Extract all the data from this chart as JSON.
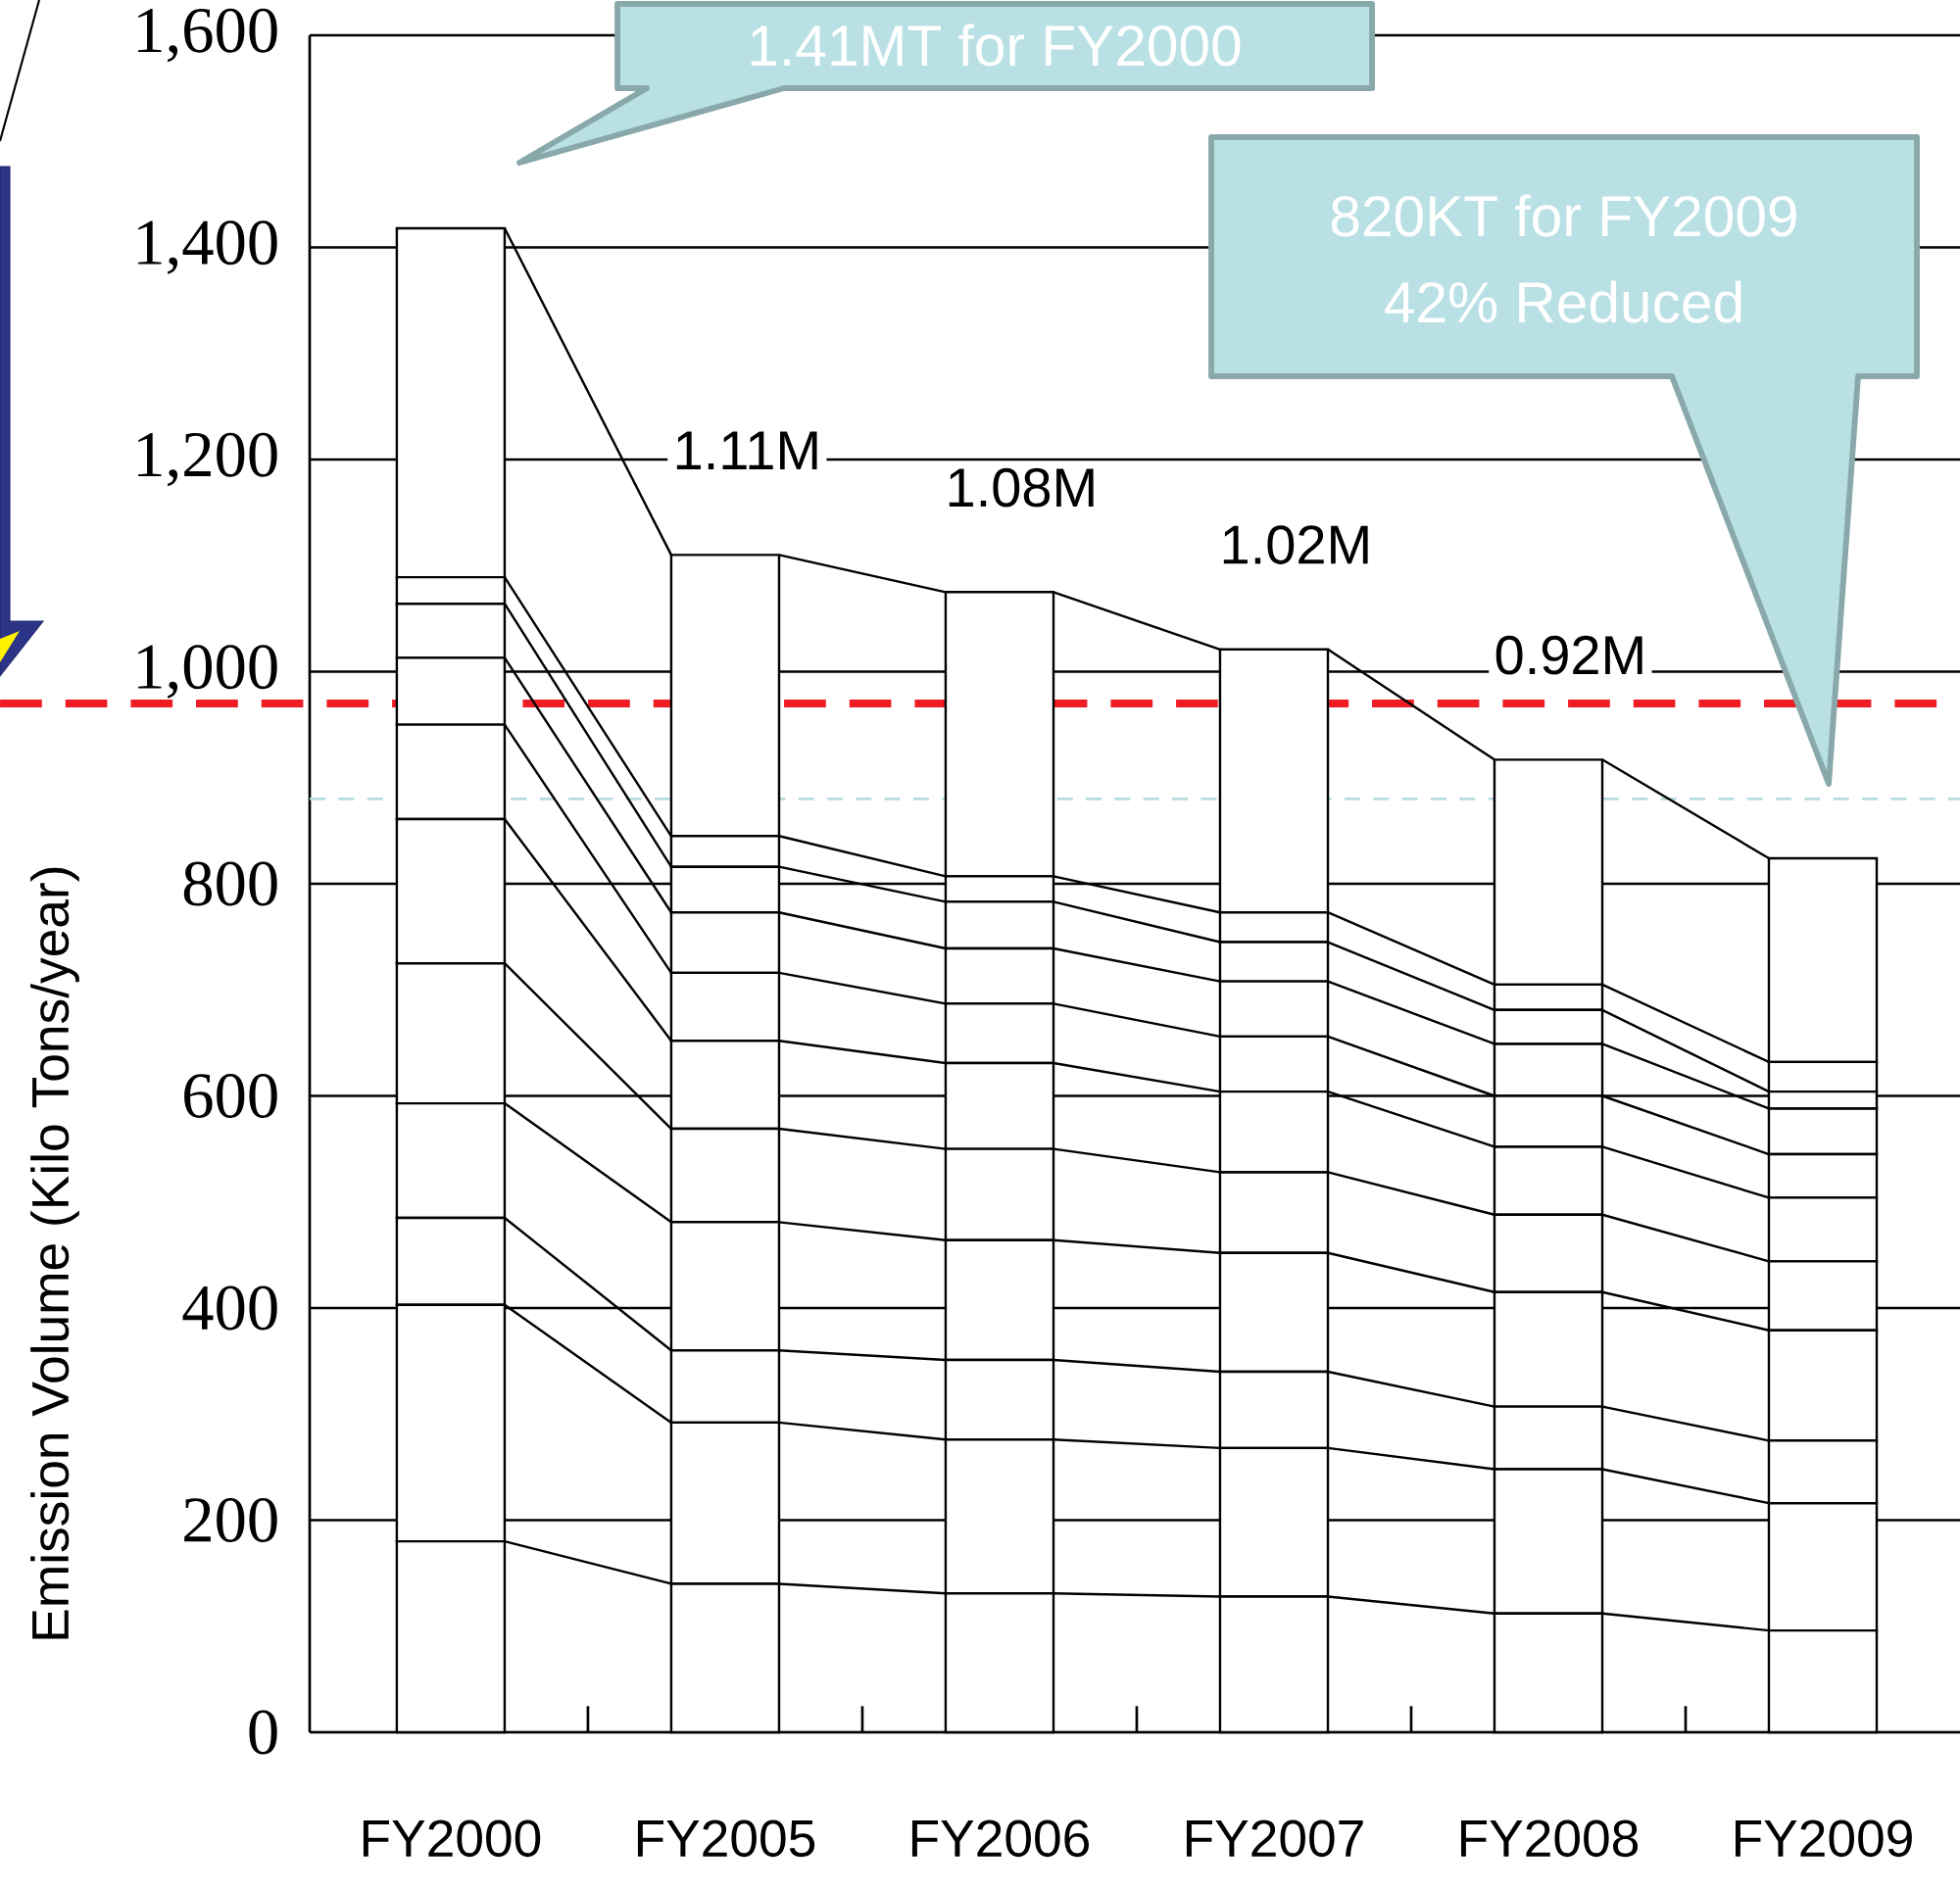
{
  "chart_data": {
    "type": "bar",
    "stacked": true,
    "categories": [
      "FY2000",
      "FY2005",
      "FY2006",
      "FY2007",
      "FY2008",
      "FY2009"
    ],
    "ylabel": "Emission Volume  (Kilo Tons/year)",
    "ylim": [
      0,
      1600
    ],
    "yticks": [
      0,
      200,
      400,
      600,
      800,
      {
        "value": 1000,
        "label": "1,000"
      },
      {
        "value": 1200,
        "label": "1,200"
      },
      {
        "value": 1400,
        "label": "1,400"
      },
      {
        "value": 1600,
        "label": "1,600"
      }
    ],
    "grid": "y",
    "series": [
      {
        "color": "#ffffff",
        "values": [
          180,
          140,
          131,
          128,
          112,
          96
        ]
      },
      {
        "color": "#ffffff",
        "values": [
          223,
          152,
          145,
          140,
          136,
          120
        ]
      },
      {
        "color": "#ffffff",
        "values": [
          82,
          68,
          75,
          72,
          59,
          59
        ]
      },
      {
        "color": "#ffffff",
        "values": [
          108,
          121,
          113,
          112,
          108,
          104
        ]
      },
      {
        "color": "#ffffff",
        "values": [
          132,
          88,
          86,
          76,
          73,
          65
        ]
      },
      {
        "color": "#ffffff",
        "values": [
          136,
          83,
          81,
          76,
          64,
          60
        ]
      },
      {
        "color": "#ffffff",
        "values": [
          89,
          64,
          56,
          52,
          48,
          41
        ]
      },
      {
        "color": "#ffffff",
        "values": [
          63,
          57,
          52,
          52,
          49,
          43
        ]
      },
      {
        "color": "#ffffff",
        "values": [
          51,
          43,
          44,
          37,
          32,
          16
        ]
      },
      {
        "color": "#ffffff",
        "values": [
          25,
          29,
          24,
          28,
          24,
          28
        ]
      },
      {
        "color": "#ffffff",
        "values": [
          329,
          265,
          268,
          248,
          212,
          192
        ]
      }
    ],
    "totals": [
      null,
      "1.11M",
      "1.08M",
      "1.02M",
      "0.92M",
      null
    ],
    "ref_lines": [
      {
        "axis": "y",
        "value": 970,
        "color": "#ee1c25",
        "line_style": "dashed"
      },
      {
        "axis": "y",
        "value": 880,
        "color": "#b5dde1",
        "line_style": "dashed"
      }
    ],
    "annotations": [
      "1.41MT for FY2000",
      "820KT for FY2009",
      "42% Reduced"
    ]
  }
}
